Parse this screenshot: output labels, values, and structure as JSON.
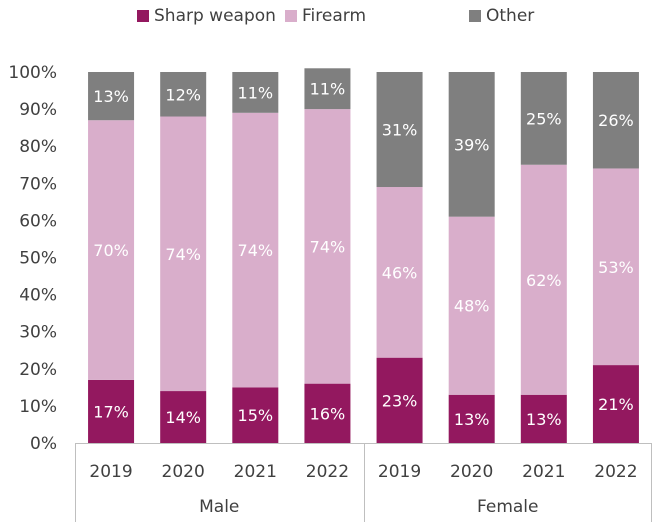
{
  "chart_data": {
    "type": "bar",
    "stacked": true,
    "normalized_percent": true,
    "title": "",
    "xlabel": "",
    "ylabel": "",
    "ylim": [
      0,
      100
    ],
    "y_ticks": [
      "0%",
      "10%",
      "20%",
      "30%",
      "40%",
      "50%",
      "60%",
      "70%",
      "80%",
      "90%",
      "100%"
    ],
    "groups": [
      {
        "label": "Male",
        "categories": [
          "2019",
          "2020",
          "2021",
          "2022"
        ]
      },
      {
        "label": "Female",
        "categories": [
          "2019",
          "2020",
          "2021",
          "2022"
        ]
      }
    ],
    "categories": [
      "2019",
      "2020",
      "2021",
      "2022",
      "2019",
      "2020",
      "2021",
      "2022"
    ],
    "series": [
      {
        "name": "Sharp weapon",
        "color": "#93185f",
        "label_color": "#ffffff",
        "values": [
          17,
          14,
          15,
          16,
          23,
          13,
          13,
          21
        ],
        "labels": [
          "17%",
          "14%",
          "15%",
          "16%",
          "23%",
          "13%",
          "13%",
          "21%"
        ]
      },
      {
        "name": "Firearm",
        "color": "#d9aecb",
        "label_color": "#ffffff",
        "values": [
          70,
          74,
          74,
          74,
          46,
          48,
          62,
          53
        ],
        "labels": [
          "70%",
          "74%",
          "74%",
          "74%",
          "46%",
          "48%",
          "62%",
          "53%"
        ]
      },
      {
        "name": "Other",
        "color": "#7f7f7f",
        "label_color": "#ffffff",
        "values": [
          13,
          12,
          11,
          11,
          31,
          39,
          25,
          26
        ],
        "labels": [
          "13%",
          "12%",
          "11%",
          "11%",
          "31%",
          "39%",
          "25%",
          "26%"
        ]
      }
    ],
    "legend": {
      "position": "top"
    },
    "grid": false
  }
}
